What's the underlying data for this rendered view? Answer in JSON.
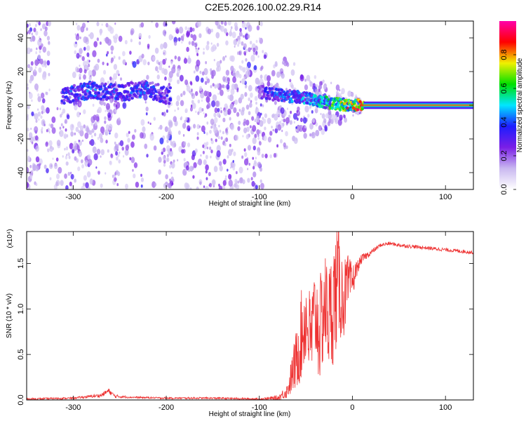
{
  "page_title": "C2E5.2026.100.02.29.R14",
  "chart_data": [
    {
      "type": "heatmap",
      "xlabel": "Height of straight line (km)",
      "ylabel": "Frequency (Hz)",
      "xlim": [
        -350,
        130
      ],
      "ylim": [
        -50,
        50
      ],
      "x_ticks": [
        -300,
        -200,
        -100,
        0,
        100
      ],
      "y_ticks": [
        -40,
        -20,
        0,
        20,
        40
      ],
      "x_tick_labels": [
        "-300",
        "-200",
        "-100",
        "0",
        "100"
      ],
      "y_tick_labels": [
        "-40",
        "-20",
        "0",
        "20",
        "40"
      ],
      "colorbar": {
        "label": "Normalized spectral amplitude",
        "range": [
          0,
          1
        ],
        "ticks": [
          0.0,
          0.2,
          0.4,
          0.6,
          0.8
        ],
        "tick_labels": [
          "0.0",
          "0.2",
          "0.4",
          "0.6",
          "0.8"
        ],
        "colors": [
          "#ffffff",
          "#c9b8f0",
          "#7a1ee6",
          "#1d1dff",
          "#00e6ff",
          "#00e000",
          "#f0f000",
          "#ff0000",
          "#ff00aa"
        ]
      },
      "band": [
        {
          "x": -310,
          "f": 6,
          "amp": 0.35
        },
        {
          "x": -280,
          "f": 9,
          "amp": 0.4
        },
        {
          "x": -250,
          "f": 7,
          "amp": 0.35
        },
        {
          "x": -225,
          "f": 10,
          "amp": 0.38
        },
        {
          "x": -200,
          "f": 6,
          "amp": 0.3
        },
        {
          "x": -100,
          "f": 8,
          "amp": 0.28
        },
        {
          "x": -80,
          "f": 6,
          "amp": 0.38
        },
        {
          "x": -60,
          "f": 5,
          "amp": 0.42
        },
        {
          "x": -40,
          "f": 3,
          "amp": 0.45
        },
        {
          "x": -20,
          "f": 1,
          "amp": 0.6
        },
        {
          "x": 0,
          "f": 0,
          "amp": 0.75
        },
        {
          "x": 20,
          "f": 0,
          "amp": 0.9
        },
        {
          "x": 130,
          "f": 0,
          "amp": 0.95
        }
      ],
      "noise_regions": [
        {
          "x_from": -350,
          "x_to": -95,
          "density": "high"
        },
        {
          "x_from": -95,
          "x_to": 10,
          "density": "medium"
        }
      ]
    },
    {
      "type": "line",
      "xlabel": "Height of straight line (km)",
      "ylabel": "SNR (10 * v/v)",
      "y_multiplier": "(x10⁴)",
      "xlim": [
        -350,
        130
      ],
      "ylim": [
        0,
        1.85
      ],
      "x_ticks": [
        -300,
        -200,
        -100,
        0,
        100
      ],
      "y_ticks": [
        0.0,
        0.5,
        1.0,
        1.5
      ],
      "x_tick_labels": [
        "-300",
        "-200",
        "-100",
        "0",
        "100"
      ],
      "y_tick_labels": [
        "0.0",
        "0.5",
        "1.0",
        "1.5"
      ],
      "series": [
        {
          "color": "#ee3333",
          "x": [
            -350,
            -300,
            -270,
            -262,
            -255,
            -240,
            -200,
            -150,
            -100,
            -80,
            -70,
            -60,
            -55,
            -50,
            -45,
            -40,
            -35,
            -30,
            -25,
            -20,
            -15,
            -10,
            -5,
            0,
            5,
            10,
            20,
            30,
            40,
            50,
            60,
            80,
            100,
            130
          ],
          "y": [
            0.01,
            0.02,
            0.05,
            0.1,
            0.04,
            0.03,
            0.02,
            0.02,
            0.01,
            0.02,
            0.1,
            0.45,
            0.7,
            0.9,
            0.65,
            0.95,
            0.75,
            1.05,
            0.9,
            1.1,
            1.3,
            1.1,
            1.25,
            1.3,
            1.45,
            1.55,
            1.62,
            1.7,
            1.72,
            1.7,
            1.69,
            1.67,
            1.65,
            1.62
          ],
          "noise": [
            0.01,
            0.01,
            0.02,
            0.03,
            0.02,
            0.01,
            0.01,
            0.01,
            0.01,
            0.03,
            0.08,
            0.35,
            0.5,
            0.5,
            0.55,
            0.55,
            0.6,
            0.6,
            0.6,
            0.7,
            0.65,
            0.45,
            0.35,
            0.2,
            0.08,
            0.05,
            0.03,
            0.02,
            0.02,
            0.02,
            0.02,
            0.02,
            0.02,
            0.02
          ]
        }
      ]
    }
  ]
}
